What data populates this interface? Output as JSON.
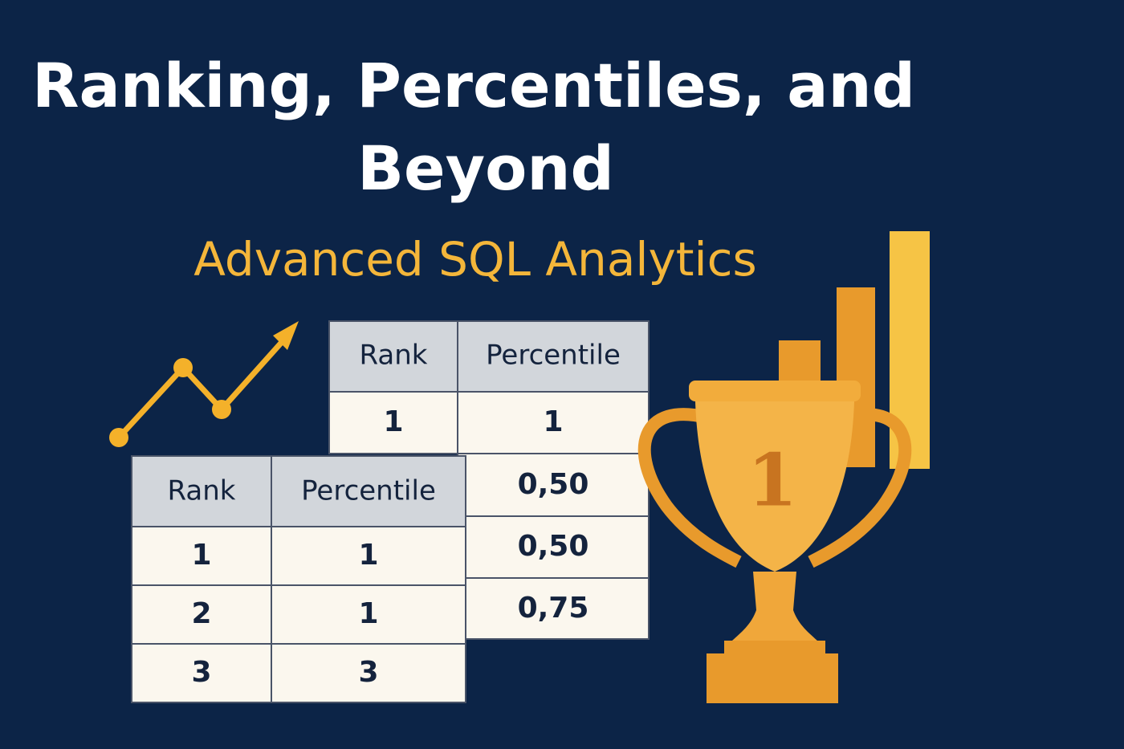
{
  "title": {
    "line1": "Ranking, Percentiles, and",
    "line2": "Beyond"
  },
  "subtitle": "Advanced SQL Analytics",
  "back_table": {
    "columns": [
      {
        "header": "Rank",
        "cells": [
          "1"
        ]
      },
      {
        "header": "Percentile",
        "cells": [
          "1",
          "0,50",
          "0,50",
          "0,75"
        ]
      }
    ]
  },
  "front_table": {
    "headers": [
      "Rank",
      "Percentile"
    ],
    "rows": [
      [
        "1",
        "1"
      ],
      [
        "2",
        "1"
      ],
      [
        "3",
        "3"
      ]
    ]
  },
  "trophy": {
    "label": "1"
  }
}
